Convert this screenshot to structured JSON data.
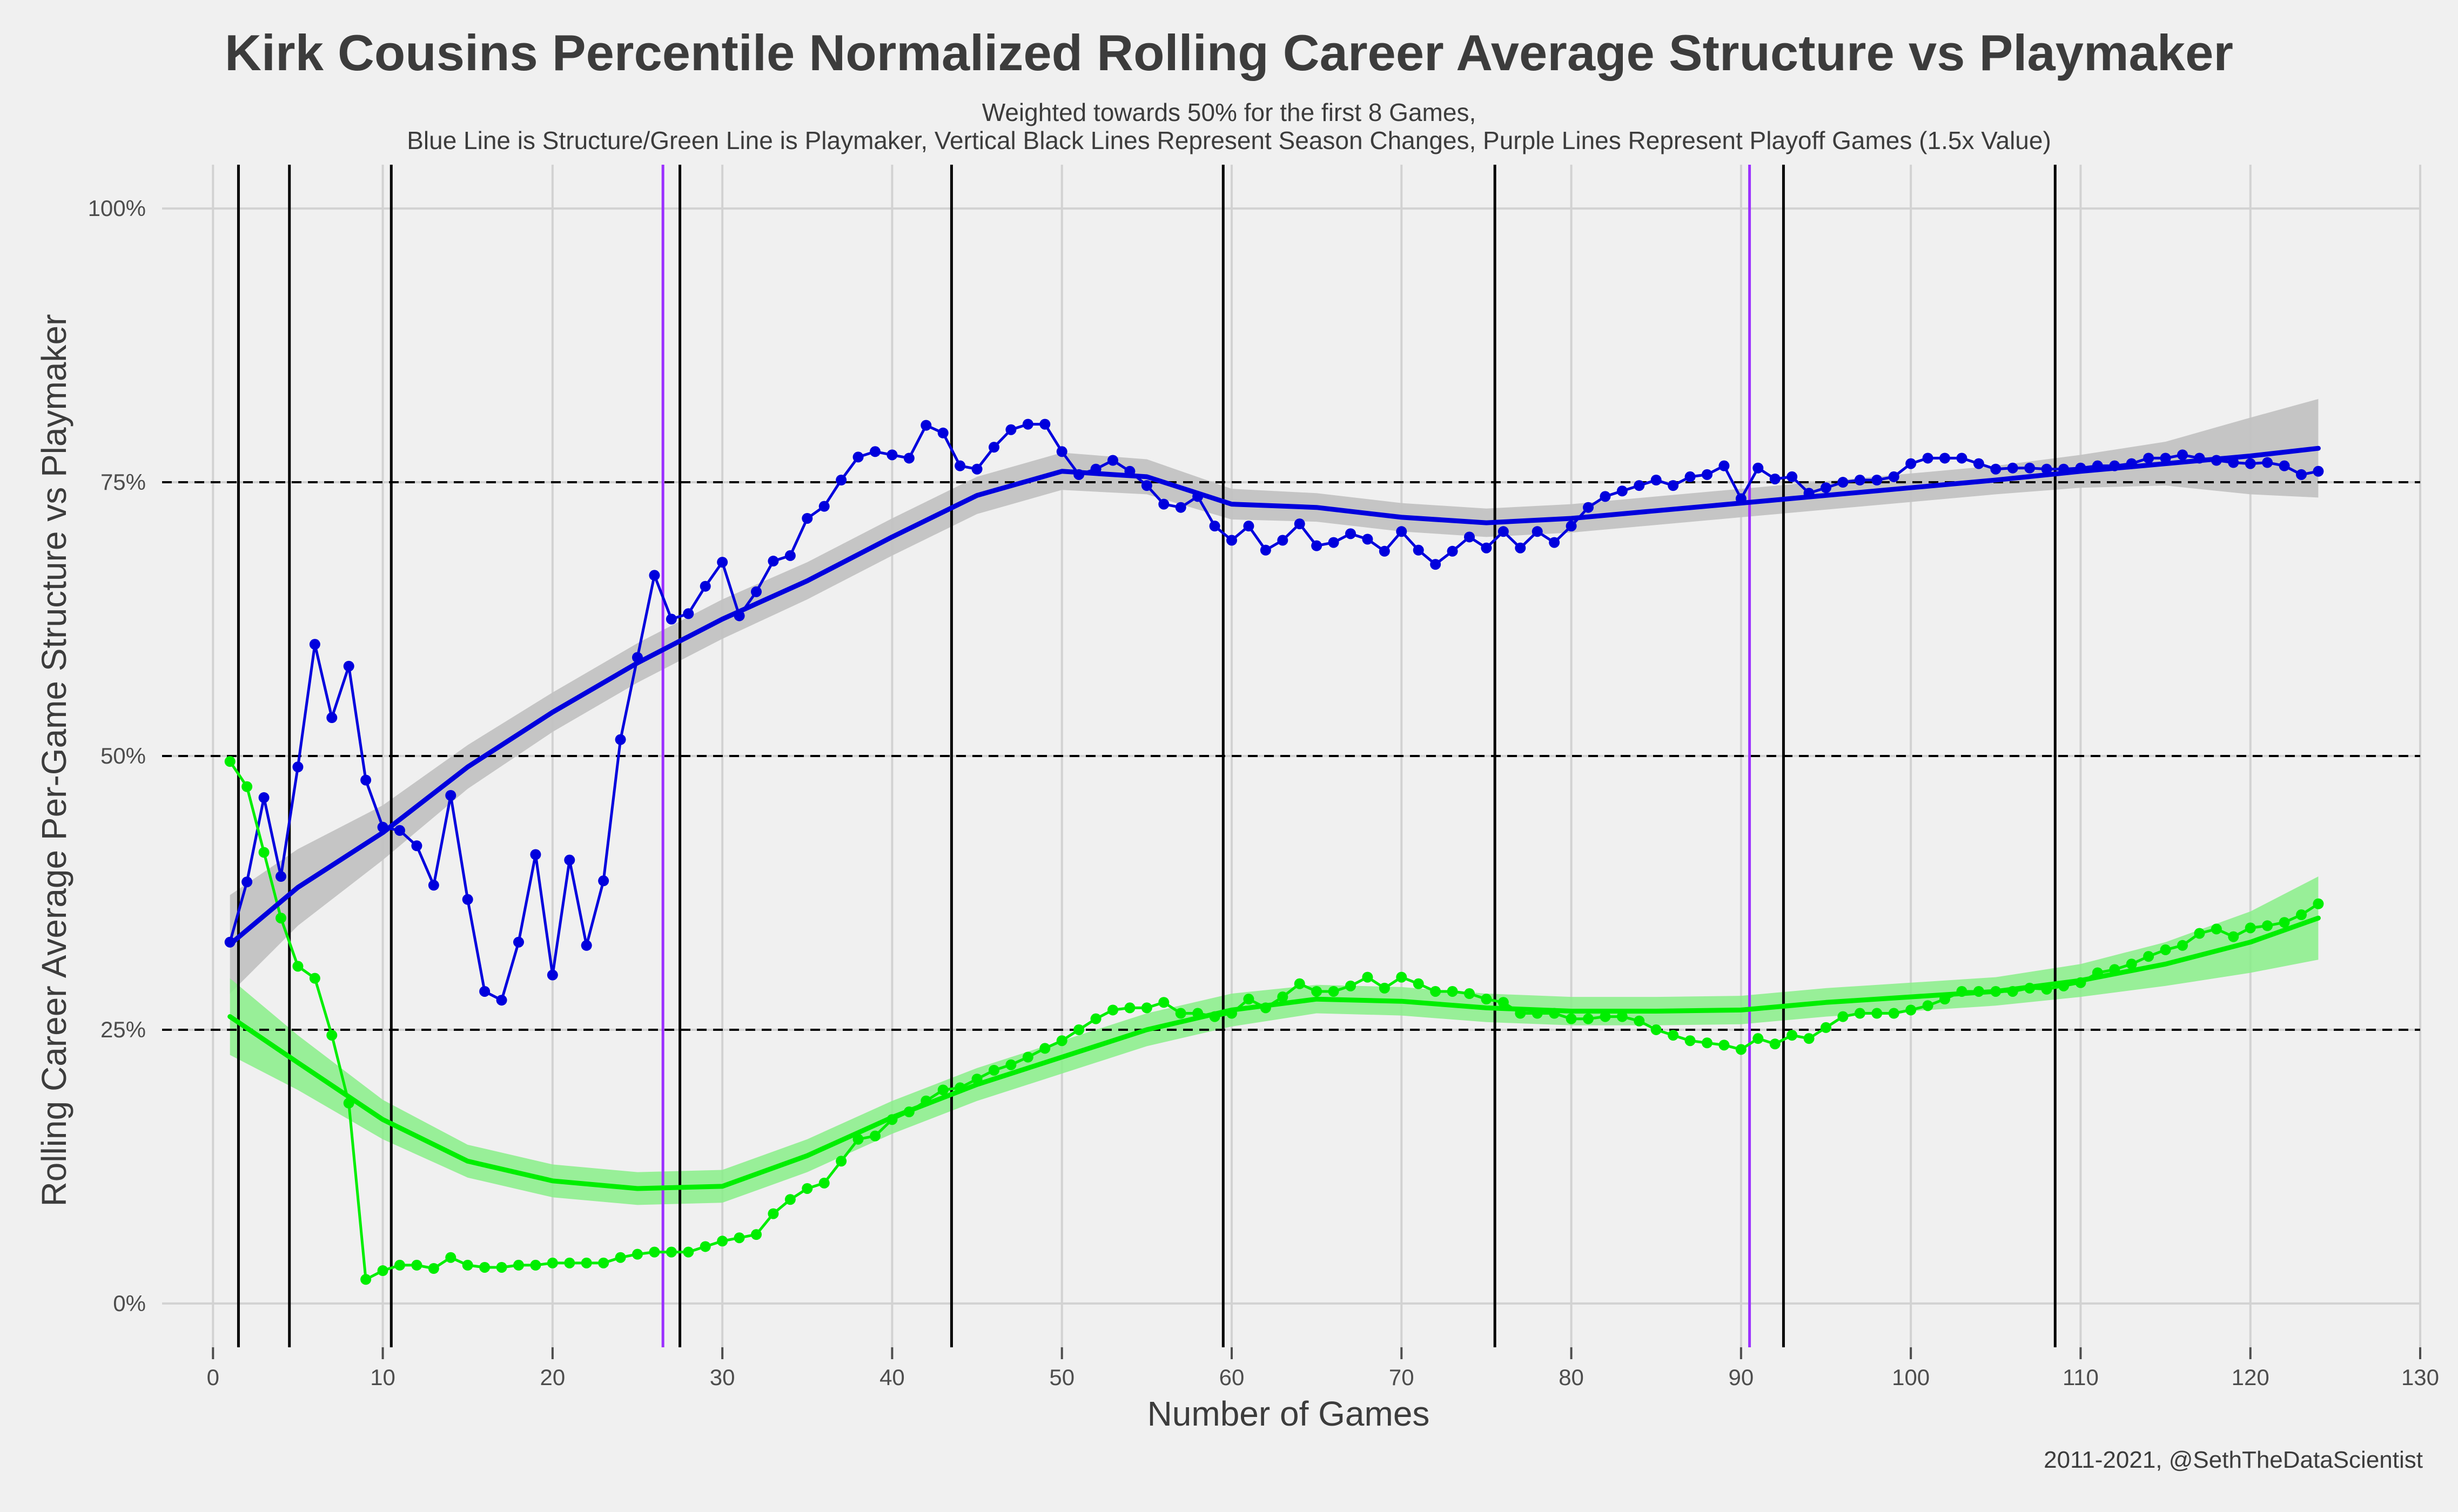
{
  "chart_data": {
    "type": "line",
    "title": "Kirk Cousins Percentile Normalized Rolling Career Average Structure vs Playmaker",
    "subtitle_line1": "Weighted towards 50% for the first 8 Games,",
    "subtitle_line2": "Blue Line is Structure/Green Line is Playmaker, Vertical Black Lines Represent Season Changes, Purple Lines Represent Playoff Games (1.5x Value)",
    "xlabel": "Number of Games",
    "ylabel": "Rolling Career Average Per-Game Structure vs Playmaker",
    "caption": "2011-2021, @SethTheDataScientist",
    "xlim": [
      -3,
      130
    ],
    "ylim": [
      -0.04,
      1.04
    ],
    "x_ticks": [
      0,
      10,
      20,
      30,
      40,
      50,
      60,
      70,
      80,
      90,
      100,
      110,
      120,
      130
    ],
    "x_tick_labels": [
      "0",
      "10",
      "20",
      "30",
      "40",
      "50",
      "60",
      "70",
      "80",
      "90",
      "100",
      "110",
      "120",
      "130"
    ],
    "y_ticks": [
      0,
      0.25,
      0.5,
      0.75,
      1.0
    ],
    "y_tick_labels": [
      "0%",
      "25%",
      "50%",
      "75%",
      "100%"
    ],
    "hlines_dashed": [
      0.25,
      0.5,
      0.75
    ],
    "season_change_lines": [
      1.5,
      4.5,
      10.5,
      27.5,
      43.5,
      59.5,
      75.5,
      92.5,
      108.5
    ],
    "playoff_lines": [
      26.5,
      90.5
    ],
    "grid": true,
    "colors": {
      "background": "#f0f0f0",
      "grid": "#d2d2d2",
      "structure": "#0000dd",
      "playmaker": "#00ee00",
      "band": "#c2c2c2",
      "playmaker_band": "#88ee88",
      "season_line": "#000000",
      "playoff_line": "#9b30ff",
      "text": "#3c3c3c"
    },
    "series": [
      {
        "key": "structure",
        "x": [
          1,
          2,
          3,
          4,
          5,
          6,
          7,
          8,
          9,
          10,
          11,
          12,
          13,
          14,
          15,
          16,
          17,
          18,
          19,
          20,
          21,
          22,
          23,
          24,
          25,
          26,
          27,
          28,
          29,
          30,
          31,
          32,
          33,
          34,
          35,
          36,
          37,
          38,
          39,
          40,
          41,
          42,
          43,
          44,
          45,
          46,
          47,
          48,
          49,
          50,
          51,
          52,
          53,
          54,
          55,
          56,
          57,
          58,
          59,
          60,
          61,
          62,
          63,
          64,
          65,
          66,
          67,
          68,
          69,
          70,
          71,
          72,
          73,
          74,
          75,
          76,
          77,
          78,
          79,
          80,
          81,
          82,
          83,
          84,
          85,
          86,
          87,
          88,
          89,
          90,
          91,
          92,
          93,
          94,
          95,
          96,
          97,
          98,
          99,
          100,
          101,
          102,
          103,
          104,
          105,
          106,
          107,
          108,
          109,
          110,
          111,
          112,
          113,
          114,
          115,
          116,
          117,
          118,
          119,
          120,
          121,
          122,
          123,
          124
        ],
        "values": [
          0.33,
          0.385,
          0.462,
          0.39,
          0.49,
          0.602,
          0.535,
          0.582,
          0.478,
          0.435,
          0.432,
          0.418,
          0.382,
          0.464,
          0.369,
          0.285,
          0.277,
          0.33,
          0.41,
          0.3,
          0.405,
          0.327,
          0.386,
          0.515,
          0.59,
          0.665,
          0.625,
          0.63,
          0.655,
          0.677,
          0.628,
          0.65,
          0.678,
          0.683,
          0.717,
          0.728,
          0.752,
          0.773,
          0.778,
          0.775,
          0.772,
          0.802,
          0.795,
          0.765,
          0.762,
          0.782,
          0.798,
          0.803,
          0.803,
          0.778,
          0.757,
          0.762,
          0.77,
          0.76,
          0.747,
          0.73,
          0.727,
          0.737,
          0.71,
          0.697,
          0.71,
          0.688,
          0.697,
          0.712,
          0.692,
          0.695,
          0.703,
          0.698,
          0.687,
          0.705,
          0.688,
          0.675,
          0.687,
          0.7,
          0.69,
          0.705,
          0.69,
          0.705,
          0.695,
          0.71,
          0.727,
          0.737,
          0.742,
          0.747,
          0.752,
          0.747,
          0.755,
          0.757,
          0.765,
          0.735,
          0.763,
          0.753,
          0.755,
          0.74,
          0.745,
          0.75,
          0.752,
          0.752,
          0.755,
          0.767,
          0.772,
          0.772,
          0.772,
          0.767,
          0.762,
          0.763,
          0.763,
          0.762,
          0.762,
          0.763,
          0.765,
          0.765,
          0.767,
          0.772,
          0.772,
          0.775,
          0.772,
          0.77,
          0.768,
          0.767,
          0.768,
          0.765,
          0.757,
          0.76
        ]
      },
      {
        "key": "playmaker",
        "x": [
          1,
          2,
          3,
          4,
          5,
          6,
          7,
          8,
          9,
          10,
          11,
          12,
          13,
          14,
          15,
          16,
          17,
          18,
          19,
          20,
          21,
          22,
          23,
          24,
          25,
          26,
          27,
          28,
          29,
          30,
          31,
          32,
          33,
          34,
          35,
          36,
          37,
          38,
          39,
          40,
          41,
          42,
          43,
          44,
          45,
          46,
          47,
          48,
          49,
          50,
          51,
          52,
          53,
          54,
          55,
          56,
          57,
          58,
          59,
          60,
          61,
          62,
          63,
          64,
          65,
          66,
          67,
          68,
          69,
          70,
          71,
          72,
          73,
          74,
          75,
          76,
          77,
          78,
          79,
          80,
          81,
          82,
          83,
          84,
          85,
          86,
          87,
          88,
          89,
          90,
          91,
          92,
          93,
          94,
          95,
          96,
          97,
          98,
          99,
          100,
          101,
          102,
          103,
          104,
          105,
          106,
          107,
          108,
          109,
          110,
          111,
          112,
          113,
          114,
          115,
          116,
          117,
          118,
          119,
          120,
          121,
          122,
          123,
          124
        ],
        "values": [
          0.495,
          0.472,
          0.412,
          0.352,
          0.308,
          0.297,
          0.245,
          0.183,
          0.022,
          0.03,
          0.035,
          0.035,
          0.032,
          0.042,
          0.035,
          0.033,
          0.033,
          0.035,
          0.035,
          0.037,
          0.037,
          0.037,
          0.037,
          0.042,
          0.045,
          0.047,
          0.047,
          0.047,
          0.052,
          0.057,
          0.06,
          0.063,
          0.082,
          0.095,
          0.105,
          0.11,
          0.13,
          0.15,
          0.153,
          0.168,
          0.175,
          0.185,
          0.195,
          0.197,
          0.205,
          0.213,
          0.218,
          0.225,
          0.233,
          0.24,
          0.25,
          0.26,
          0.268,
          0.27,
          0.27,
          0.275,
          0.265,
          0.265,
          0.262,
          0.265,
          0.278,
          0.27,
          0.28,
          0.292,
          0.285,
          0.285,
          0.29,
          0.298,
          0.288,
          0.298,
          0.292,
          0.285,
          0.285,
          0.283,
          0.278,
          0.275,
          0.265,
          0.265,
          0.265,
          0.26,
          0.26,
          0.262,
          0.262,
          0.258,
          0.25,
          0.245,
          0.24,
          0.238,
          0.236,
          0.232,
          0.242,
          0.237,
          0.245,
          0.242,
          0.252,
          0.262,
          0.265,
          0.265,
          0.265,
          0.268,
          0.272,
          0.278,
          0.285,
          0.285,
          0.285,
          0.285,
          0.288,
          0.287,
          0.29,
          0.293,
          0.302,
          0.305,
          0.31,
          0.317,
          0.323,
          0.327,
          0.338,
          0.342,
          0.335,
          0.343,
          0.345,
          0.348,
          0.355,
          0.365
        ]
      }
    ],
    "smooth": [
      {
        "key": "structure",
        "x": [
          1,
          5,
          10,
          15,
          20,
          25,
          30,
          35,
          40,
          45,
          50,
          55,
          60,
          65,
          70,
          75,
          80,
          85,
          90,
          95,
          100,
          105,
          110,
          115,
          120,
          124
        ],
        "fit": [
          0.328,
          0.38,
          0.43,
          0.49,
          0.54,
          0.585,
          0.625,
          0.66,
          0.7,
          0.738,
          0.76,
          0.755,
          0.73,
          0.727,
          0.718,
          0.713,
          0.717,
          0.724,
          0.731,
          0.738,
          0.745,
          0.752,
          0.76,
          0.767,
          0.774,
          0.781
        ],
        "se": [
          0.045,
          0.035,
          0.025,
          0.02,
          0.018,
          0.018,
          0.018,
          0.017,
          0.017,
          0.017,
          0.017,
          0.016,
          0.014,
          0.013,
          0.013,
          0.013,
          0.013,
          0.013,
          0.013,
          0.013,
          0.013,
          0.013,
          0.015,
          0.02,
          0.035,
          0.045
        ]
      },
      {
        "key": "playmaker",
        "x": [
          1,
          5,
          10,
          15,
          20,
          25,
          30,
          35,
          40,
          45,
          50,
          55,
          60,
          65,
          70,
          75,
          80,
          85,
          90,
          95,
          100,
          105,
          110,
          115,
          120,
          124
        ],
        "fit": [
          0.262,
          0.22,
          0.168,
          0.13,
          0.112,
          0.105,
          0.107,
          0.135,
          0.17,
          0.2,
          0.225,
          0.25,
          0.268,
          0.278,
          0.276,
          0.27,
          0.267,
          0.267,
          0.268,
          0.275,
          0.28,
          0.285,
          0.295,
          0.31,
          0.33,
          0.352
        ],
        "se": [
          0.035,
          0.025,
          0.018,
          0.015,
          0.015,
          0.015,
          0.015,
          0.015,
          0.015,
          0.015,
          0.015,
          0.015,
          0.015,
          0.013,
          0.013,
          0.013,
          0.013,
          0.013,
          0.013,
          0.013,
          0.013,
          0.013,
          0.015,
          0.02,
          0.028,
          0.038
        ]
      }
    ]
  }
}
